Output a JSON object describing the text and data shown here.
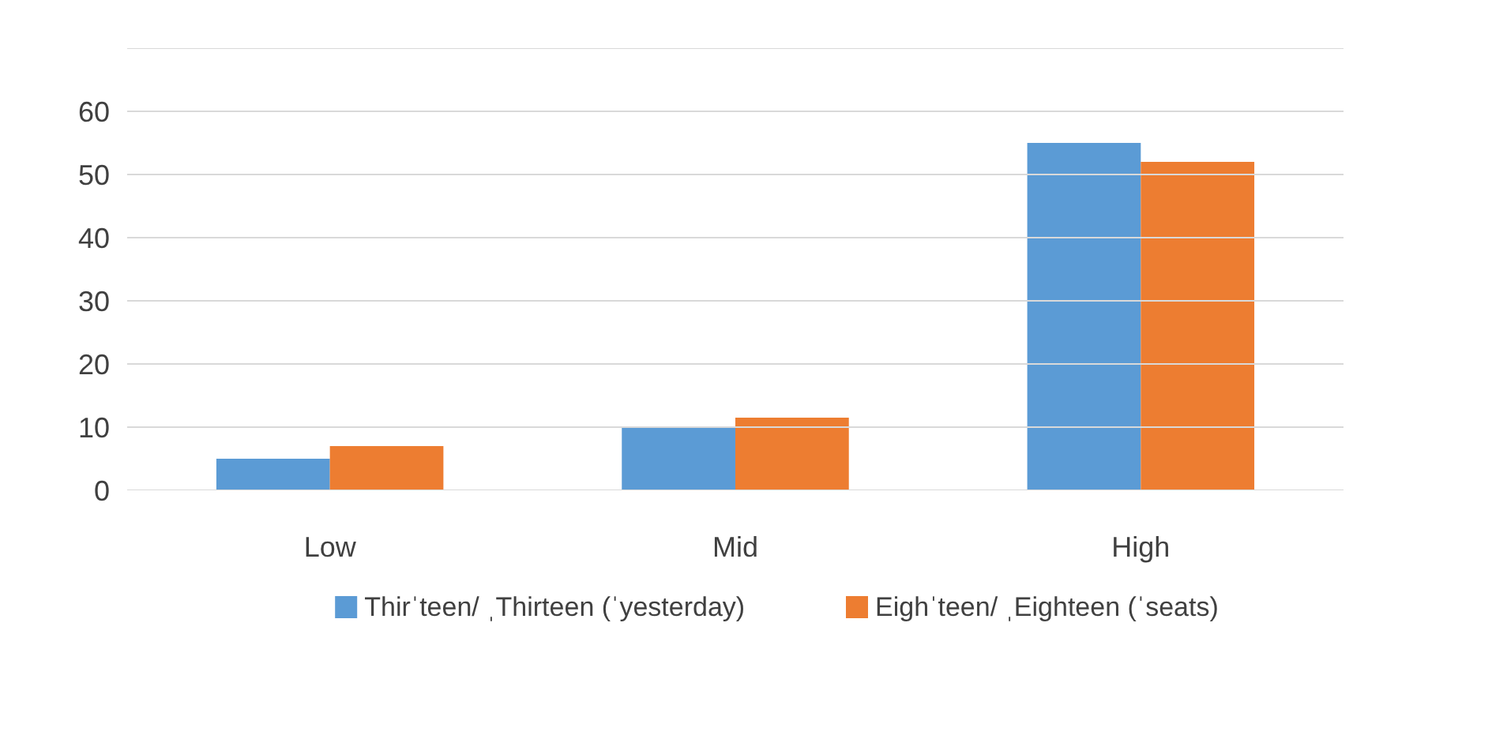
{
  "chart_data": {
    "type": "bar",
    "categories": [
      "Low",
      "Mid",
      "High"
    ],
    "series": [
      {
        "name": "Thirˈteen/ ˌThirteen (ˈyesterday)",
        "color": "#5b9bd5",
        "values": [
          5,
          10,
          55
        ]
      },
      {
        "name": "Eighˈteen/ ˌEighteen (ˈseats)",
        "color": "#ed7d31",
        "values": [
          7,
          11.5,
          52
        ]
      }
    ],
    "ylim": [
      0,
      70
    ],
    "yticks": [
      0,
      10,
      20,
      30,
      40,
      50,
      60,
      {
        "value": 70,
        "label": null
      }
    ],
    "grid": "y",
    "legend": "bottom"
  }
}
